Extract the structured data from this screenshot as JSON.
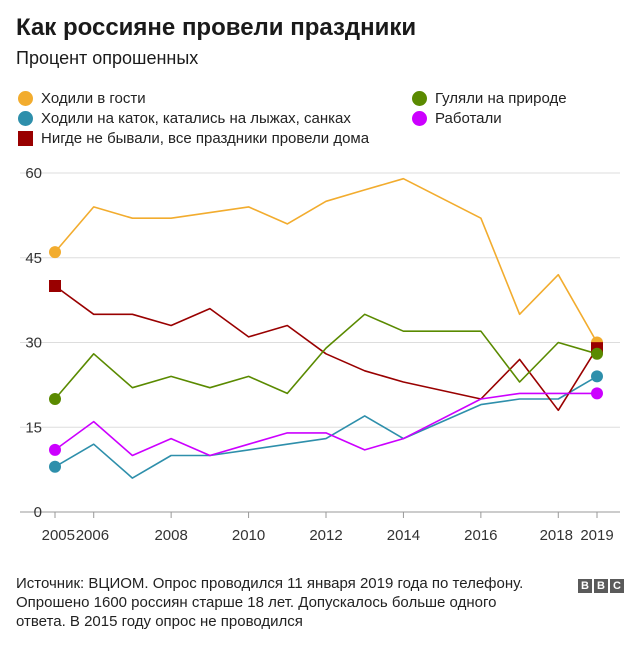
{
  "chart_data": {
    "type": "line",
    "title": "Как россияне провели праздники",
    "subtitle": "Процент опрошенных",
    "xlabel": "",
    "ylabel": "",
    "ylim": [
      0,
      60
    ],
    "yticks": [
      0,
      15,
      30,
      45,
      60
    ],
    "xticks": [
      "2005",
      "2006",
      "2008",
      "2010",
      "2012",
      "2014",
      "2016",
      "2018",
      "2019"
    ],
    "x": [
      2005,
      2006,
      2007,
      2008,
      2009,
      2010,
      2011,
      2012,
      2013,
      2014,
      2016,
      2017,
      2018,
      2019
    ],
    "grid": true,
    "legend_position": "top",
    "series": [
      {
        "name": "Ходили в гости",
        "color": "#f2ac2e",
        "marker": "circle",
        "values": [
          46,
          54,
          52,
          52,
          53,
          54,
          51,
          55,
          57,
          59,
          52,
          35,
          42,
          30
        ]
      },
      {
        "name": "Ходили на каток, катались на лыжах, санках",
        "color": "#2e8fab",
        "marker": "circle",
        "values": [
          8,
          12,
          6,
          10,
          10,
          11,
          12,
          13,
          17,
          13,
          19,
          20,
          20,
          24
        ]
      },
      {
        "name": "Нигде не бывали, все праздники провели дома",
        "color": "#990000",
        "marker": "square",
        "values": [
          40,
          35,
          35,
          33,
          36,
          31,
          33,
          28,
          25,
          23,
          20,
          27,
          18,
          29
        ]
      },
      {
        "name": "Гуляли на природе",
        "color": "#5a8a00",
        "marker": "circle",
        "values": [
          20,
          28,
          22,
          24,
          22,
          24,
          21,
          29,
          35,
          32,
          32,
          23,
          30,
          28
        ]
      },
      {
        "name": "Работали",
        "color": "#cc00ff",
        "marker": "circle",
        "values": [
          11,
          16,
          10,
          13,
          10,
          12,
          14,
          14,
          11,
          13,
          20,
          21,
          21,
          21
        ]
      }
    ]
  },
  "footer": {
    "line1": "Источник: ВЦИОМ. Опрос проводился 11 января 2019 года по телефону.",
    "line2": "Опрошено 1600 россиян старше 18 лет. Допускалось больше одного",
    "line3": "ответа. В 2015 году опрос не проводился"
  },
  "logo": {
    "letters": [
      "B",
      "B",
      "C"
    ]
  }
}
